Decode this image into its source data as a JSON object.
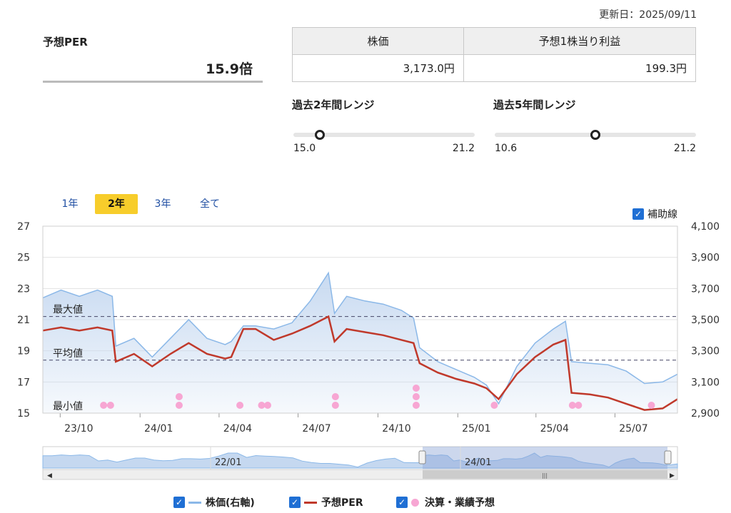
{
  "header": {
    "updated": "更新日：2025/09/11",
    "per_label": "予想PER",
    "per_value": "15.9倍",
    "price_header": "株価",
    "eps_header": "予想1株当り利益",
    "price_value": "3,173.0円",
    "eps_value": "199.3円"
  },
  "ranges": [
    {
      "title": "過去2年間レンジ",
      "min": "15.0",
      "max": "21.2",
      "current": 15.9
    },
    {
      "title": "過去5年間レンジ",
      "min": "10.6",
      "max": "21.2",
      "current": 15.9
    }
  ],
  "tabs": [
    {
      "label": "1年",
      "active": false
    },
    {
      "label": "2年",
      "active": true
    },
    {
      "label": "3年",
      "active": false
    },
    {
      "label": "全て",
      "active": false
    }
  ],
  "aux_label": "補助線",
  "legend": {
    "price": "株価(右軸)",
    "per": "予想PER",
    "events": "決算・業績予想"
  },
  "colors": {
    "price_line": "#8bb8e8",
    "price_fill": "#c5d8f0",
    "per_line": "#c0392b",
    "event_dot": "#f7a6d3",
    "tab_active": "#f7cd2b",
    "check": "#1f6fd4"
  },
  "chart_data": {
    "type": "line",
    "x_ticks": [
      "23/10",
      "24/01",
      "24/04",
      "24/07",
      "24/10",
      "25/01",
      "25/04",
      "25/07"
    ],
    "y_left": {
      "ticks": [
        27,
        25,
        23,
        21,
        19,
        17,
        15
      ],
      "range": [
        15,
        27
      ]
    },
    "y_right": {
      "ticks": [
        "4,100",
        "3,900",
        "3,700",
        "3,500",
        "3,300",
        "3,100",
        "2,900"
      ],
      "range": [
        2900,
        4100
      ]
    },
    "reference_lines": [
      {
        "label": "最大値",
        "value": 21.2
      },
      {
        "label": "平均値",
        "value": 18.4
      },
      {
        "label": "最小値",
        "value": 15.0
      }
    ],
    "series": [
      {
        "name": "株価(右軸)",
        "axis": "right",
        "x": [
          "2023-09-11",
          "2023-10-02",
          "2023-10-23",
          "2023-11-13",
          "2023-11-30",
          "2023-12-04",
          "2023-12-25",
          "2024-01-15",
          "2024-02-05",
          "2024-02-26",
          "2024-03-18",
          "2024-04-08",
          "2024-04-15",
          "2024-04-29",
          "2024-05-13",
          "2024-06-03",
          "2024-06-24",
          "2024-07-15",
          "2024-08-05",
          "2024-08-12",
          "2024-08-26",
          "2024-09-16",
          "2024-10-07",
          "2024-10-28",
          "2024-11-11",
          "2024-11-18",
          "2024-12-09",
          "2024-12-30",
          "2025-01-20",
          "2025-02-03",
          "2025-02-17",
          "2025-03-10",
          "2025-03-31",
          "2025-04-21",
          "2025-05-05",
          "2025-05-12",
          "2025-06-02",
          "2025-06-23",
          "2025-07-14",
          "2025-08-04",
          "2025-08-25",
          "2025-09-11"
        ],
        "values": [
          3640,
          3690,
          3650,
          3690,
          3650,
          3330,
          3380,
          3260,
          3380,
          3500,
          3380,
          3340,
          3360,
          3460,
          3460,
          3440,
          3480,
          3620,
          3800,
          3540,
          3650,
          3620,
          3600,
          3560,
          3510,
          3320,
          3230,
          3180,
          3130,
          3080,
          2960,
          3200,
          3350,
          3440,
          3490,
          3230,
          3220,
          3210,
          3170,
          3090,
          3100,
          3150
        ]
      },
      {
        "name": "予想PER",
        "axis": "left",
        "x": [
          "2023-09-11",
          "2023-10-02",
          "2023-10-23",
          "2023-11-13",
          "2023-11-30",
          "2023-12-04",
          "2023-12-25",
          "2024-01-15",
          "2024-02-05",
          "2024-02-26",
          "2024-03-18",
          "2024-04-08",
          "2024-04-15",
          "2024-04-29",
          "2024-05-13",
          "2024-06-03",
          "2024-06-24",
          "2024-07-15",
          "2024-08-05",
          "2024-08-12",
          "2024-08-26",
          "2024-09-16",
          "2024-10-07",
          "2024-10-28",
          "2024-11-11",
          "2024-11-18",
          "2024-12-09",
          "2024-12-30",
          "2025-01-20",
          "2025-02-03",
          "2025-02-17",
          "2025-03-10",
          "2025-03-31",
          "2025-04-21",
          "2025-05-05",
          "2025-05-12",
          "2025-06-02",
          "2025-06-23",
          "2025-07-14",
          "2025-08-04",
          "2025-08-25",
          "2025-09-11"
        ],
        "values": [
          20.3,
          20.5,
          20.3,
          20.5,
          20.3,
          18.3,
          18.8,
          18.0,
          18.8,
          19.5,
          18.8,
          18.5,
          18.6,
          20.4,
          20.4,
          19.7,
          20.1,
          20.6,
          21.2,
          19.6,
          20.4,
          20.2,
          20.0,
          19.7,
          19.5,
          18.2,
          17.6,
          17.2,
          16.9,
          16.6,
          15.9,
          17.5,
          18.6,
          19.4,
          19.7,
          16.3,
          16.2,
          16.0,
          15.6,
          15.2,
          15.3,
          15.9
        ]
      }
    ],
    "events": [
      {
        "date": "2023-11-20",
        "count": 1
      },
      {
        "date": "2023-11-28",
        "count": 1
      },
      {
        "date": "2024-02-15",
        "count": 2
      },
      {
        "date": "2024-04-25",
        "count": 1
      },
      {
        "date": "2024-05-20",
        "count": 1
      },
      {
        "date": "2024-05-27",
        "count": 1
      },
      {
        "date": "2024-08-13",
        "count": 2
      },
      {
        "date": "2024-11-14",
        "count": 3
      },
      {
        "date": "2025-02-12",
        "count": 1
      },
      {
        "date": "2025-05-13",
        "count": 1
      },
      {
        "date": "2025-05-20",
        "count": 1
      },
      {
        "date": "2025-08-12",
        "count": 1
      }
    ],
    "navigator_ticks": [
      "22/01",
      "24/01"
    ]
  }
}
